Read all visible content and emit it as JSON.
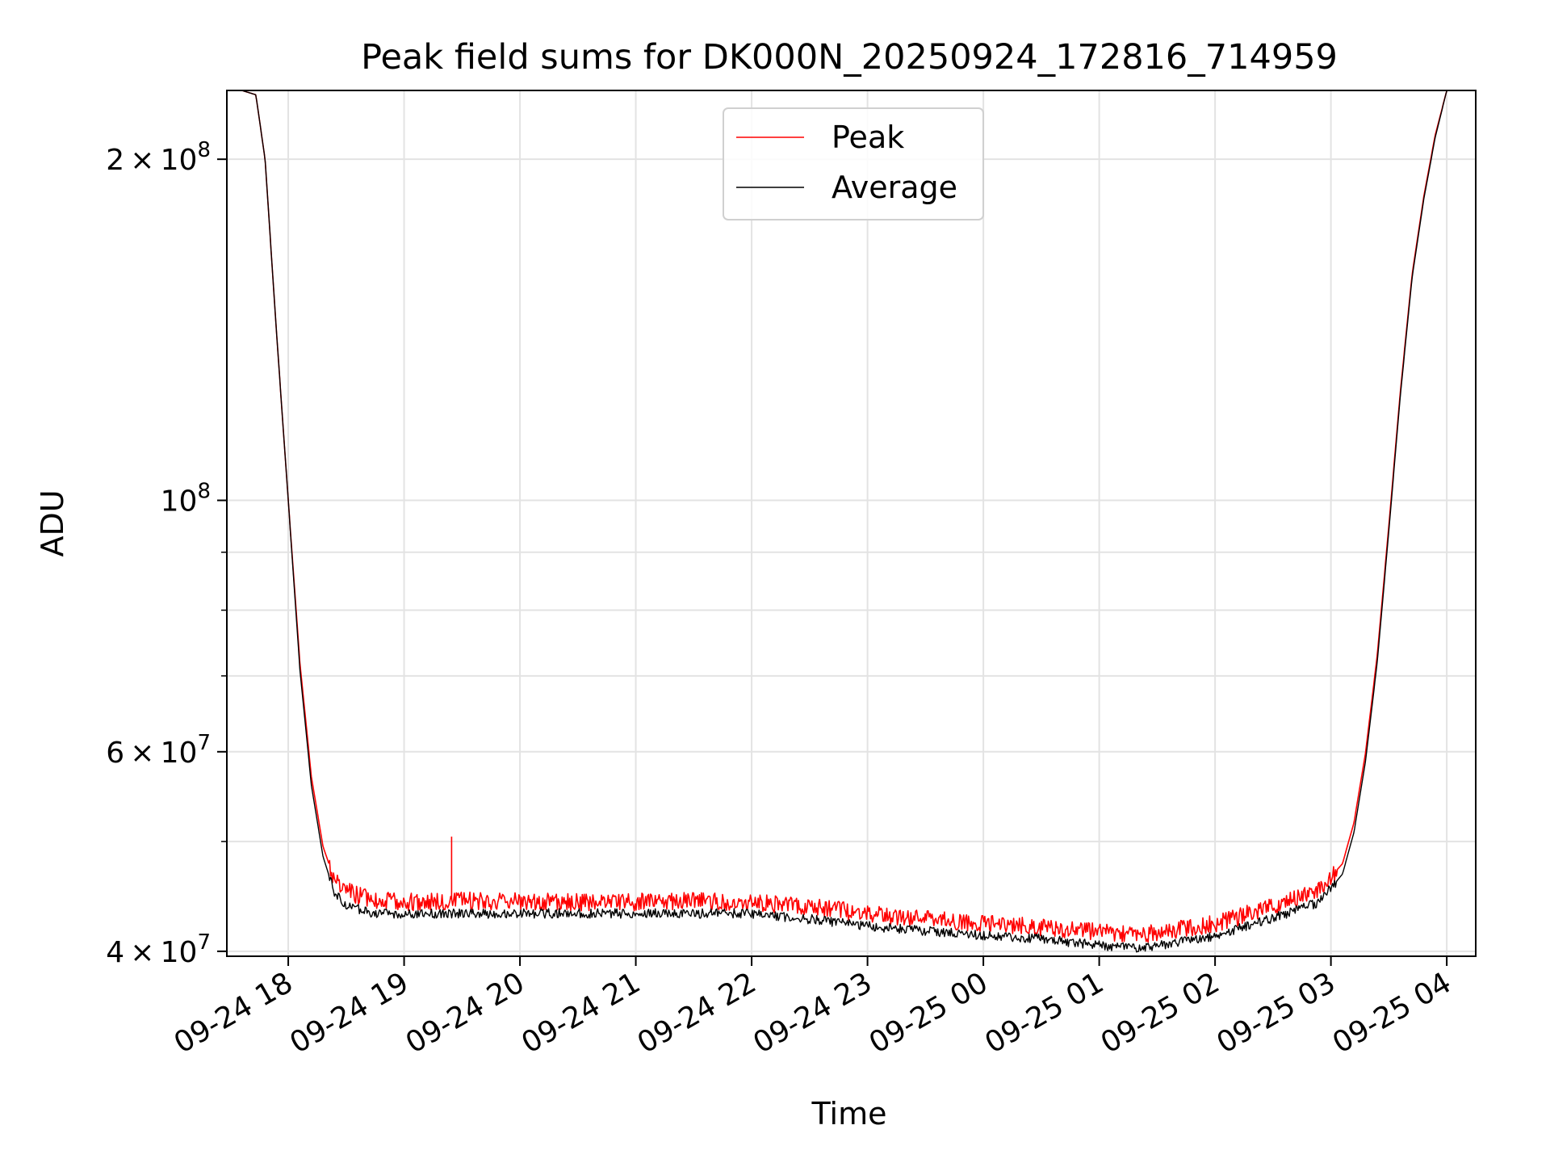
{
  "chart_data": {
    "type": "line",
    "title": "Peak field sums for DK000N_20250924_172816_714959",
    "xlabel": "Time",
    "ylabel": "ADU",
    "yscale": "log",
    "ylim": [
      39600000,
      230000000
    ],
    "xlim_hours": [
      17.47,
      28.25
    ],
    "x_ticks": [
      {
        "hour": 18,
        "label": "09-24 18"
      },
      {
        "hour": 19,
        "label": "09-24 19"
      },
      {
        "hour": 20,
        "label": "09-24 20"
      },
      {
        "hour": 21,
        "label": "09-24 21"
      },
      {
        "hour": 22,
        "label": "09-24 22"
      },
      {
        "hour": 23,
        "label": "09-24 23"
      },
      {
        "hour": 24,
        "label": "09-25 00"
      },
      {
        "hour": 25,
        "label": "09-25 01"
      },
      {
        "hour": 26,
        "label": "09-25 02"
      },
      {
        "hour": 27,
        "label": "09-25 03"
      },
      {
        "hour": 28,
        "label": "09-25 04"
      }
    ],
    "y_major_ticks": [
      {
        "value": 200000000,
        "mantissa": "2",
        "base": "10",
        "exp": "8"
      },
      {
        "value": 100000000,
        "mantissa": "",
        "base": "10",
        "exp": "8"
      },
      {
        "value": 60000000,
        "mantissa": "6",
        "base": "10",
        "exp": "7"
      },
      {
        "value": 40000000,
        "mantissa": "4",
        "base": "10",
        "exp": "7"
      }
    ],
    "y_minor_ticks": [
      50000000,
      70000000,
      80000000,
      90000000
    ],
    "grid": true,
    "legend_position": "top-center",
    "series": [
      {
        "name": "Peak",
        "color": "#ff0000",
        "x_hours": [
          17.47,
          17.6,
          17.72,
          17.8,
          17.9,
          18.0,
          18.1,
          18.2,
          18.3,
          18.4,
          18.5,
          18.7,
          19.0,
          19.5,
          20.0,
          20.5,
          21.0,
          21.5,
          22.0,
          22.5,
          23.0,
          23.5,
          24.0,
          24.5,
          25.0,
          25.3,
          25.6,
          26.0,
          26.3,
          26.6,
          26.9,
          27.1,
          27.2,
          27.3,
          27.4,
          27.5,
          27.6,
          27.7,
          27.8,
          27.9,
          28.0,
          28.1,
          28.25
        ],
        "values": [
          230000000,
          230000000,
          228000000,
          200000000,
          140000000,
          100000000,
          72000000,
          57000000,
          49500000,
          46200000,
          45200000,
          44500000,
          44200000,
          44300000,
          44300000,
          44200000,
          44200000,
          44300000,
          44200000,
          43800000,
          43200000,
          42700000,
          42300000,
          42000000,
          41600000,
          41300000,
          41700000,
          42300000,
          43200000,
          44200000,
          45300000,
          47800000,
          52000000,
          60000000,
          73000000,
          95000000,
          125000000,
          158000000,
          185000000,
          210000000,
          230000000,
          230000000,
          230000000
        ]
      },
      {
        "name": "Average",
        "color": "#000000",
        "x_hours": [
          17.47,
          17.6,
          17.72,
          17.8,
          17.9,
          18.0,
          18.1,
          18.2,
          18.3,
          18.4,
          18.5,
          18.7,
          19.0,
          19.5,
          20.0,
          20.5,
          21.0,
          21.5,
          22.0,
          22.5,
          23.0,
          23.5,
          24.0,
          24.5,
          25.0,
          25.3,
          25.6,
          26.0,
          26.3,
          26.6,
          26.9,
          27.1,
          27.2,
          27.3,
          27.4,
          27.5,
          27.6,
          27.7,
          27.8,
          27.9,
          28.0,
          28.1,
          28.25
        ],
        "values": [
          230000000,
          230000000,
          228000000,
          200000000,
          140000000,
          100000000,
          71000000,
          56000000,
          48500000,
          45000000,
          43900000,
          43300000,
          43100000,
          43200000,
          43200000,
          43200000,
          43200000,
          43200000,
          43200000,
          42700000,
          42100000,
          41700000,
          41300000,
          41000000,
          40500000,
          40300000,
          40600000,
          41300000,
          42200000,
          43100000,
          44200000,
          46800000,
          51000000,
          59000000,
          72000000,
          94000000,
          124000000,
          157000000,
          184000000,
          209000000,
          230000000,
          230000000,
          230000000
        ]
      }
    ],
    "annotations": [
      {
        "series": "Peak",
        "hour": 19.41,
        "value": 50500000,
        "note": "spike"
      }
    ]
  }
}
